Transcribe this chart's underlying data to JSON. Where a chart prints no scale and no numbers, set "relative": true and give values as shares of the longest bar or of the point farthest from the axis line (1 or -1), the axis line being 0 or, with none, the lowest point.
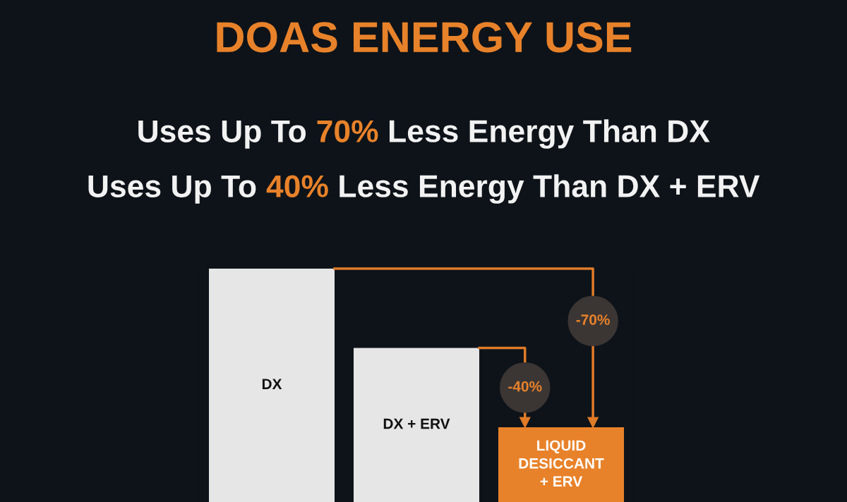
{
  "chart_data": {
    "type": "bar",
    "title": "DOAS ENERGY USE",
    "subtitle": "Uses Up To 70% Less Energy Than DX\nUses Up To 40% Less Energy Than DX + ERV",
    "categories": [
      "DX",
      "DX + ERV",
      "LIQUID\nDESICCANT\n+ ERV"
    ],
    "values": [
      1,
      0.66,
      0.32
    ],
    "colors": [
      "#e6e6e6",
      "#e6e6e6",
      "#e8822a"
    ],
    "relative": true,
    "annotations": [
      "-70%",
      "-40%"
    ],
    "legend": false
  }
}
